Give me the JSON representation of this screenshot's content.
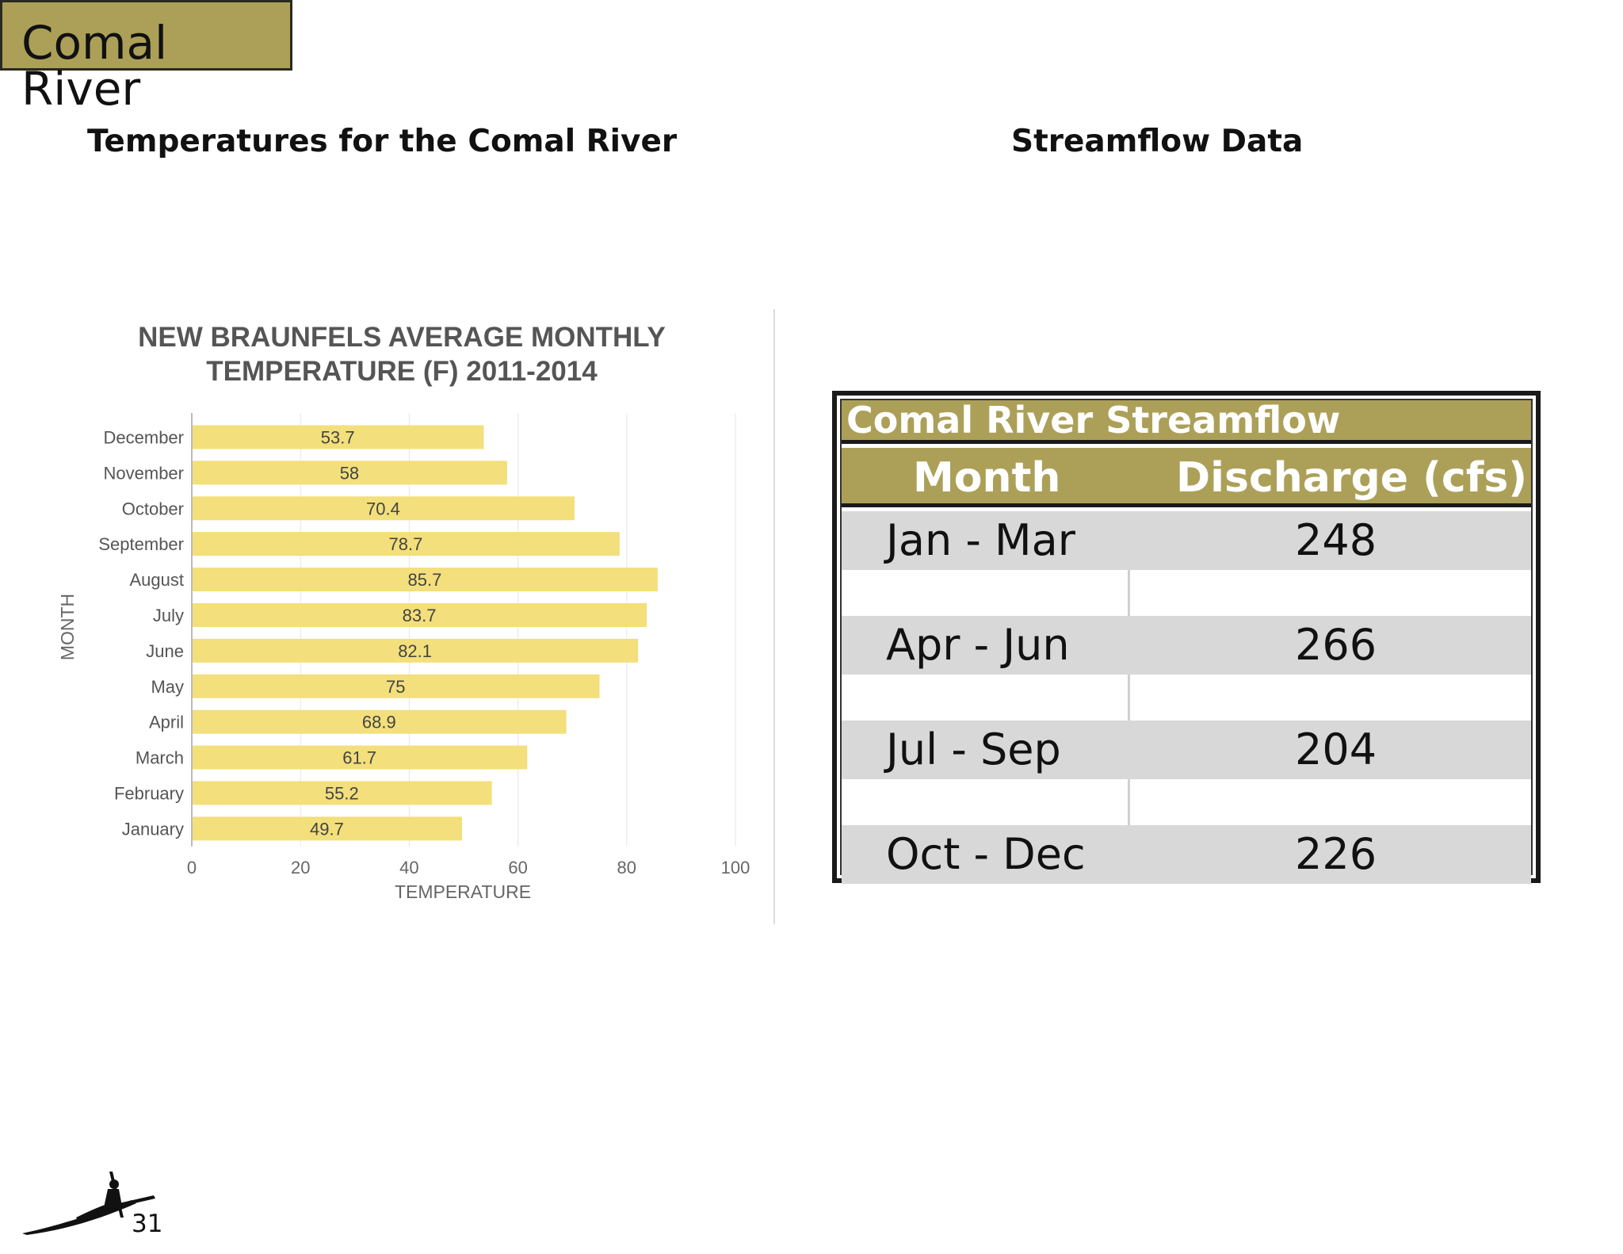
{
  "header": {
    "title": "Comal River"
  },
  "sections": {
    "left_heading": "Temperatures for the Comal River",
    "right_heading": "Streamflow Data"
  },
  "chart_data": {
    "type": "bar",
    "orientation": "horizontal",
    "title_lines": [
      "NEW BRAUNFELS AVERAGE MONTHLY",
      "TEMPERATURE (F) 2011-2014"
    ],
    "xlabel": "TEMPERATURE",
    "ylabel": "MONTH",
    "categories": [
      "December",
      "November",
      "October",
      "September",
      "August",
      "July",
      "June",
      "May",
      "April",
      "March",
      "February",
      "January"
    ],
    "values": [
      53.7,
      58,
      70.4,
      78.7,
      85.7,
      83.7,
      82.1,
      75,
      68.9,
      61.7,
      55.2,
      49.7
    ],
    "value_labels": [
      "53.7",
      "58",
      "70.4",
      "78.7",
      "85.7",
      "83.7",
      "82.1",
      "75",
      "68.9",
      "61.7",
      "55.2",
      "49.7"
    ],
    "xlim": [
      0,
      100
    ],
    "xticks": [
      "0",
      "20",
      "40",
      "60",
      "80",
      "100"
    ],
    "grid": true,
    "legend": "none",
    "bar_color": "#f3df7b"
  },
  "streamflow": {
    "caption": "Comal River Streamflow",
    "headers": [
      "Month",
      "Discharge (cfs)"
    ],
    "rows": [
      {
        "month": "Jan - Mar",
        "discharge": "248"
      },
      {
        "month": "Apr - Jun",
        "discharge": "266"
      },
      {
        "month": "Jul - Sep",
        "discharge": "204"
      },
      {
        "month": "Oct - Dec",
        "discharge": "226"
      }
    ],
    "accent_color": "#aca059",
    "row_color": "#d8d8d8"
  },
  "footer": {
    "page_number": "31",
    "logo_icon": "kayaker-silhouette-icon"
  }
}
